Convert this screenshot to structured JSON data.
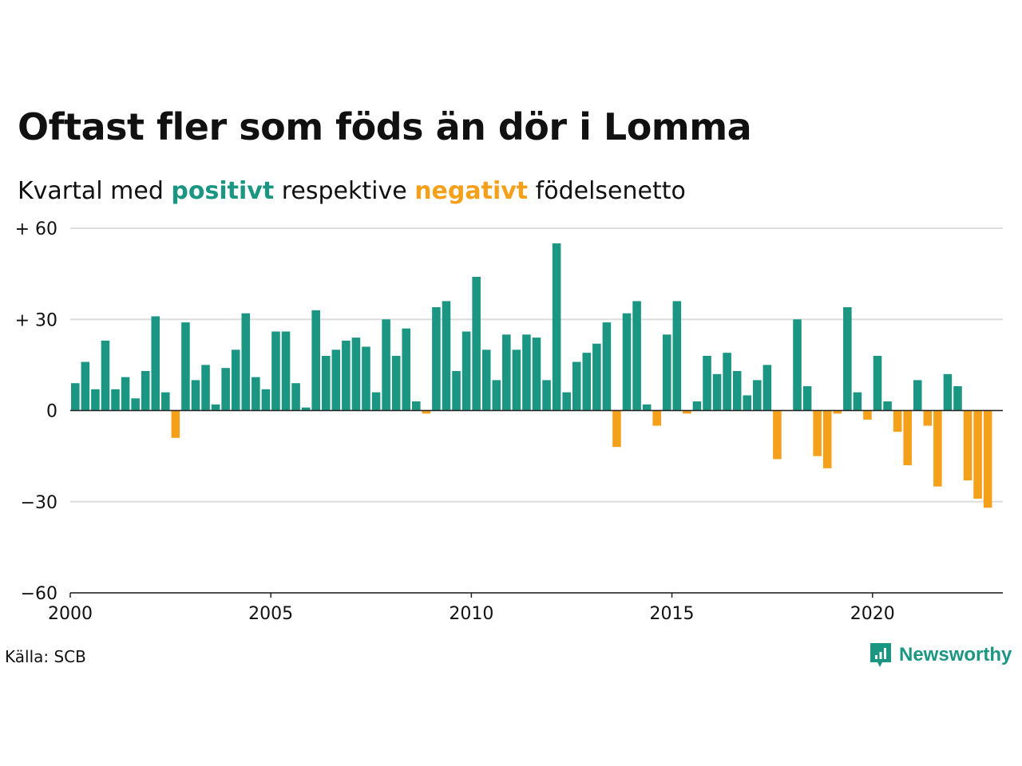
{
  "title": "Oftast fler som föds än dör i Lomma",
  "subtitle": {
    "prefix": "Kvartal med ",
    "positive_word": "positivt",
    "middle": " respektive ",
    "negative_word": "negativt",
    "suffix": " födelsenetto"
  },
  "source": "Källa: SCB",
  "brand": "Newsworthy",
  "colors": {
    "positive": "#1a9683",
    "negative": "#f5a01a",
    "grid": "#dddddd",
    "axis": "#222222",
    "brand": "#1a9683"
  },
  "chart_data": {
    "type": "bar",
    "x_start": 2000,
    "x_step": 0.25,
    "x_tick_labels": [
      "2000",
      "2005",
      "2010",
      "2015",
      "2020"
    ],
    "x_ticks": [
      2000,
      2005,
      2010,
      2015,
      2020
    ],
    "xlim": [
      2000,
      2023.25
    ],
    "y_ticks": [
      60,
      30,
      0,
      -30,
      -60
    ],
    "y_tick_labels": [
      "+ 60",
      "+ 30",
      "0",
      "−30",
      "−60"
    ],
    "ylim": [
      -60,
      60
    ],
    "grid": true,
    "values": [
      9,
      16,
      7,
      23,
      7,
      11,
      4,
      13,
      31,
      6,
      -9,
      29,
      10,
      15,
      2,
      14,
      20,
      32,
      11,
      7,
      26,
      26,
      9,
      1,
      33,
      18,
      20,
      23,
      24,
      21,
      6,
      30,
      18,
      27,
      3,
      -1,
      34,
      36,
      13,
      26,
      44,
      20,
      10,
      25,
      20,
      25,
      24,
      10,
      55,
      6,
      16,
      19,
      22,
      29,
      -12,
      32,
      36,
      2,
      -5,
      25,
      36,
      -1,
      3,
      18,
      12,
      19,
      13,
      5,
      10,
      15,
      -16,
      0,
      30,
      8,
      -15,
      -19,
      -1,
      34,
      6,
      -3,
      18,
      3,
      -7,
      -18,
      10,
      -5,
      -25,
      12,
      8,
      -23,
      -29,
      -32
    ]
  }
}
